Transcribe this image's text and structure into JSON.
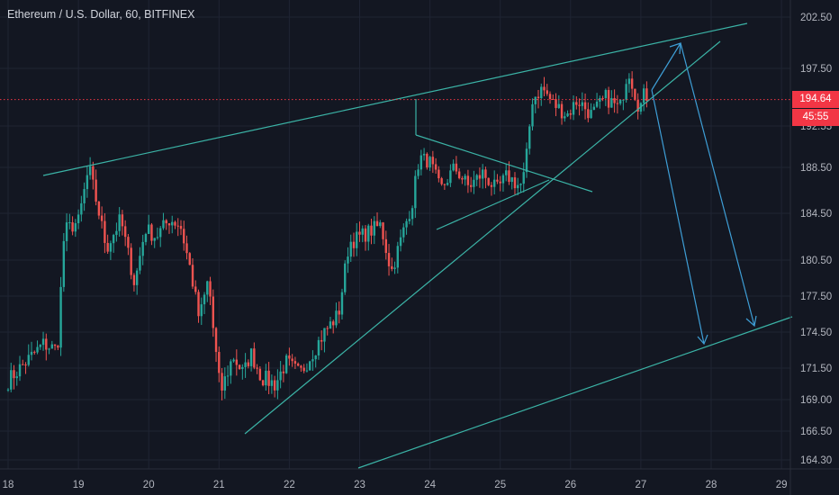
{
  "header": {
    "title": "Ethereum / U.S. Dollar, 60, BITFINEX"
  },
  "price_label": {
    "price": "194.64",
    "countdown": "45:55",
    "color": "#f23645"
  },
  "colors": {
    "background": "#131722",
    "up": "#26a69a",
    "down": "#ef5350",
    "trendline": "#3bb3a6",
    "arrow": "#3e9ed6",
    "grid": "#1f2433",
    "axis_text": "#b2b5be"
  },
  "chart_data": {
    "type": "candlestick",
    "title": "Ethereum / U.S. Dollar, 60, BITFINEX",
    "x_tick_labels": [
      "18",
      "19",
      "20",
      "21",
      "22",
      "23",
      "24",
      "25",
      "26",
      "27",
      "28",
      "29"
    ],
    "y_tick_labels": [
      "202.50",
      "197.50",
      "192.55",
      "188.50",
      "184.50",
      "180.50",
      "177.50",
      "174.50",
      "171.50",
      "169.00",
      "166.50",
      "164.30"
    ],
    "ylim": [
      164.0,
      203.5
    ],
    "xlim": [
      18.0,
      29.0
    ],
    "grid": true,
    "current_price": 194.64,
    "anchors": [
      [
        18.0,
        170.5
      ],
      [
        18.3,
        172.3
      ],
      [
        18.5,
        173.5
      ],
      [
        18.7,
        173.0
      ],
      [
        18.8,
        183.0
      ],
      [
        19.0,
        183.8
      ],
      [
        19.15,
        188.5
      ],
      [
        19.4,
        181.5
      ],
      [
        19.6,
        184.0
      ],
      [
        19.8,
        178.5
      ],
      [
        19.95,
        183.2
      ],
      [
        20.1,
        182.5
      ],
      [
        20.3,
        184.0
      ],
      [
        20.45,
        183.5
      ],
      [
        20.6,
        179.5
      ],
      [
        20.72,
        175.5
      ],
      [
        20.85,
        179.0
      ],
      [
        20.93,
        174.0
      ],
      [
        21.02,
        169.5
      ],
      [
        21.2,
        172.5
      ],
      [
        21.35,
        171.0
      ],
      [
        21.45,
        172.8
      ],
      [
        21.6,
        170.8
      ],
      [
        21.8,
        170.2
      ],
      [
        21.95,
        172.0
      ],
      [
        22.15,
        171.0
      ],
      [
        22.3,
        172.5
      ],
      [
        22.5,
        174.5
      ],
      [
        22.7,
        176.0
      ],
      [
        22.85,
        182.0
      ],
      [
        23.1,
        182.8
      ],
      [
        23.3,
        183.5
      ],
      [
        23.45,
        179.5
      ],
      [
        23.6,
        182.5
      ],
      [
        23.75,
        185.5
      ],
      [
        23.85,
        189.5
      ],
      [
        24.0,
        189.0
      ],
      [
        24.15,
        186.5
      ],
      [
        24.35,
        188.5
      ],
      [
        24.55,
        186.8
      ],
      [
        24.75,
        188.0
      ],
      [
        24.95,
        186.5
      ],
      [
        25.1,
        187.8
      ],
      [
        25.28,
        186.8
      ],
      [
        25.35,
        188.0
      ],
      [
        25.45,
        194.8
      ],
      [
        25.6,
        195.8
      ],
      [
        25.75,
        194.5
      ],
      [
        25.95,
        193.5
      ],
      [
        26.1,
        194.8
      ],
      [
        26.3,
        193.5
      ],
      [
        26.5,
        195.0
      ],
      [
        26.7,
        194.0
      ],
      [
        26.82,
        197.5
      ],
      [
        26.98,
        194.0
      ],
      [
        27.06,
        195.5
      ],
      [
        27.12,
        194.6
      ]
    ]
  }
}
